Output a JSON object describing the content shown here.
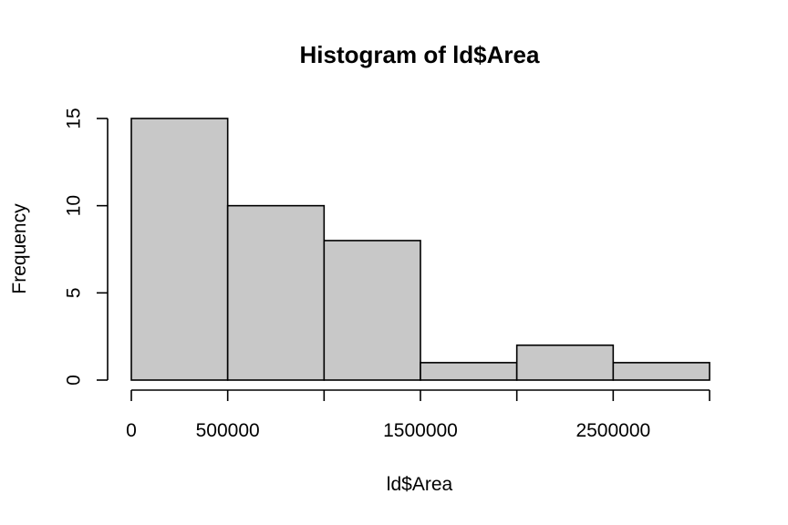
{
  "chart_data": {
    "type": "bar",
    "subtype": "histogram",
    "title": "Histogram of ld$Area",
    "xlabel": "ld$Area",
    "ylabel": "Frequency",
    "bins": [
      {
        "start": 0,
        "end": 500000,
        "count": 15
      },
      {
        "start": 500000,
        "end": 1000000,
        "count": 10
      },
      {
        "start": 1000000,
        "end": 1500000,
        "count": 8
      },
      {
        "start": 1500000,
        "end": 2000000,
        "count": 1
      },
      {
        "start": 2000000,
        "end": 2500000,
        "count": 2
      },
      {
        "start": 2500000,
        "end": 3000000,
        "count": 1
      }
    ],
    "xlim": [
      0,
      3000000
    ],
    "ylim": [
      0,
      15
    ],
    "x_ticks": [
      0,
      500000,
      1000000,
      1500000,
      2000000,
      2500000,
      3000000
    ],
    "x_tick_labels": [
      "0",
      "500000",
      "",
      "1500000",
      "",
      "2500000",
      ""
    ],
    "y_ticks": [
      0,
      5,
      10,
      15
    ],
    "y_tick_labels": [
      "0",
      "5",
      "10",
      "15"
    ],
    "bar_fill": "#c8c8c8",
    "bar_stroke": "#000000",
    "grid": false,
    "legend": "none"
  }
}
